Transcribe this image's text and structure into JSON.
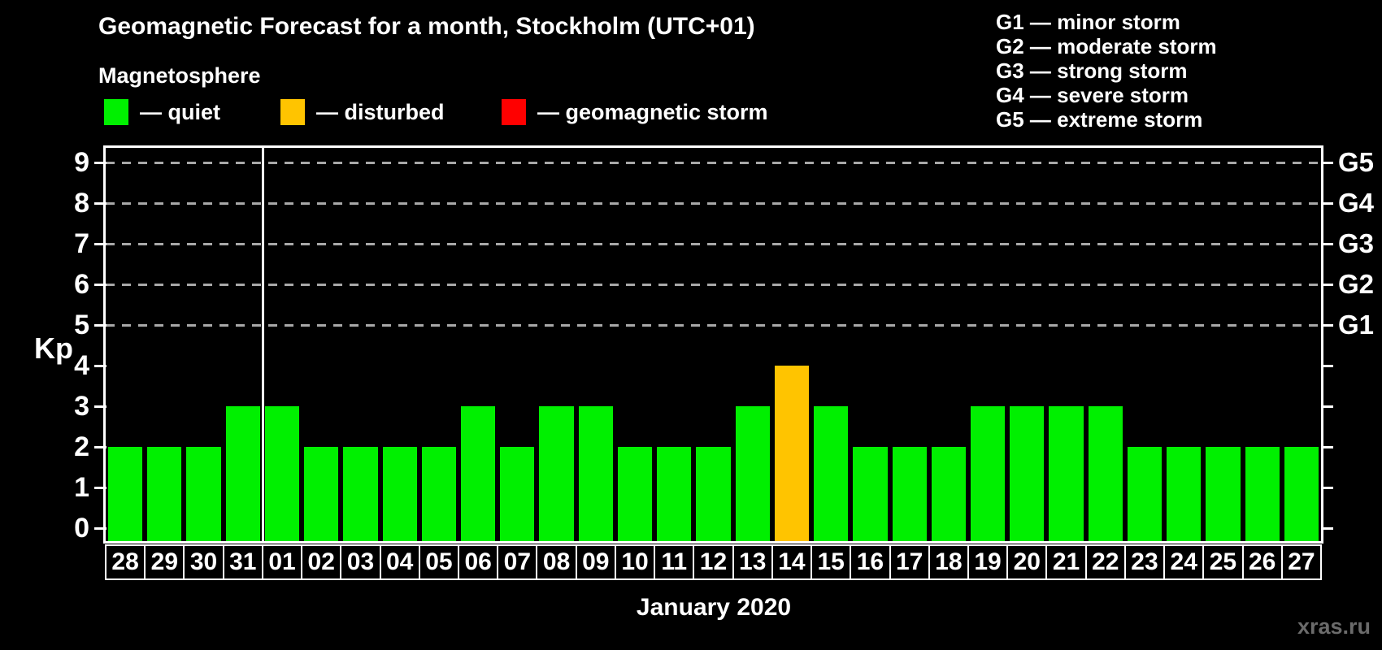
{
  "title": "Geomagnetic Forecast for a month, Stockholm (UTC+01)",
  "subtitle": "Magnetosphere",
  "legend": {
    "items": [
      {
        "name": "quiet",
        "swatch_color": "#00f000",
        "label": "— quiet"
      },
      {
        "name": "disturbed",
        "swatch_color": "#ffc400",
        "label": "— disturbed"
      },
      {
        "name": "storm",
        "swatch_color": "#ff0000",
        "label": "— geomagnetic storm"
      }
    ]
  },
  "g_scale_legend": [
    "G1 — minor storm",
    "G2 — moderate storm",
    "G3 — strong storm",
    "G4 — severe storm",
    "G5 — extreme storm"
  ],
  "watermark": "xras.ru",
  "chart_data": {
    "type": "bar",
    "title": "Geomagnetic Forecast for a month, Stockholm (UTC+01)",
    "xlabel": "January 2020",
    "ylabel": "Kp",
    "ylim": [
      0,
      9
    ],
    "y_ticks": [
      0,
      1,
      2,
      3,
      4,
      5,
      6,
      7,
      8,
      9
    ],
    "gridlines_at": [
      5,
      6,
      7,
      8,
      9
    ],
    "grid": "horizontal dashed lines only at storm levels Kp 5-9",
    "legend_position": "top-left quiet/disturbed/storm, top-right G-scale",
    "categories": [
      "28",
      "29",
      "30",
      "31",
      "01",
      "02",
      "03",
      "04",
      "05",
      "06",
      "07",
      "08",
      "09",
      "10",
      "11",
      "12",
      "13",
      "14",
      "15",
      "16",
      "17",
      "18",
      "19",
      "20",
      "21",
      "22",
      "23",
      "24",
      "25",
      "26",
      "27"
    ],
    "values": [
      2,
      2,
      2,
      3,
      3,
      2,
      2,
      2,
      2,
      3,
      2,
      3,
      3,
      2,
      2,
      2,
      3,
      4,
      3,
      2,
      2,
      2,
      3,
      3,
      3,
      3,
      2,
      2,
      2,
      2,
      2
    ],
    "month_separator_after_category": "31",
    "right_axis": [
      {
        "kp": 5,
        "label": "G1"
      },
      {
        "kp": 6,
        "label": "G2"
      },
      {
        "kp": 7,
        "label": "G3"
      },
      {
        "kp": 8,
        "label": "G4"
      },
      {
        "kp": 9,
        "label": "G5"
      }
    ],
    "colors": {
      "quiet": "#00f000",
      "disturbed": "#ffc400",
      "storm": "#ff0000"
    },
    "color_rule": {
      "quiet_max_kp": 3,
      "disturbed_max_kp": 4,
      "storm_min_kp": 5
    }
  }
}
